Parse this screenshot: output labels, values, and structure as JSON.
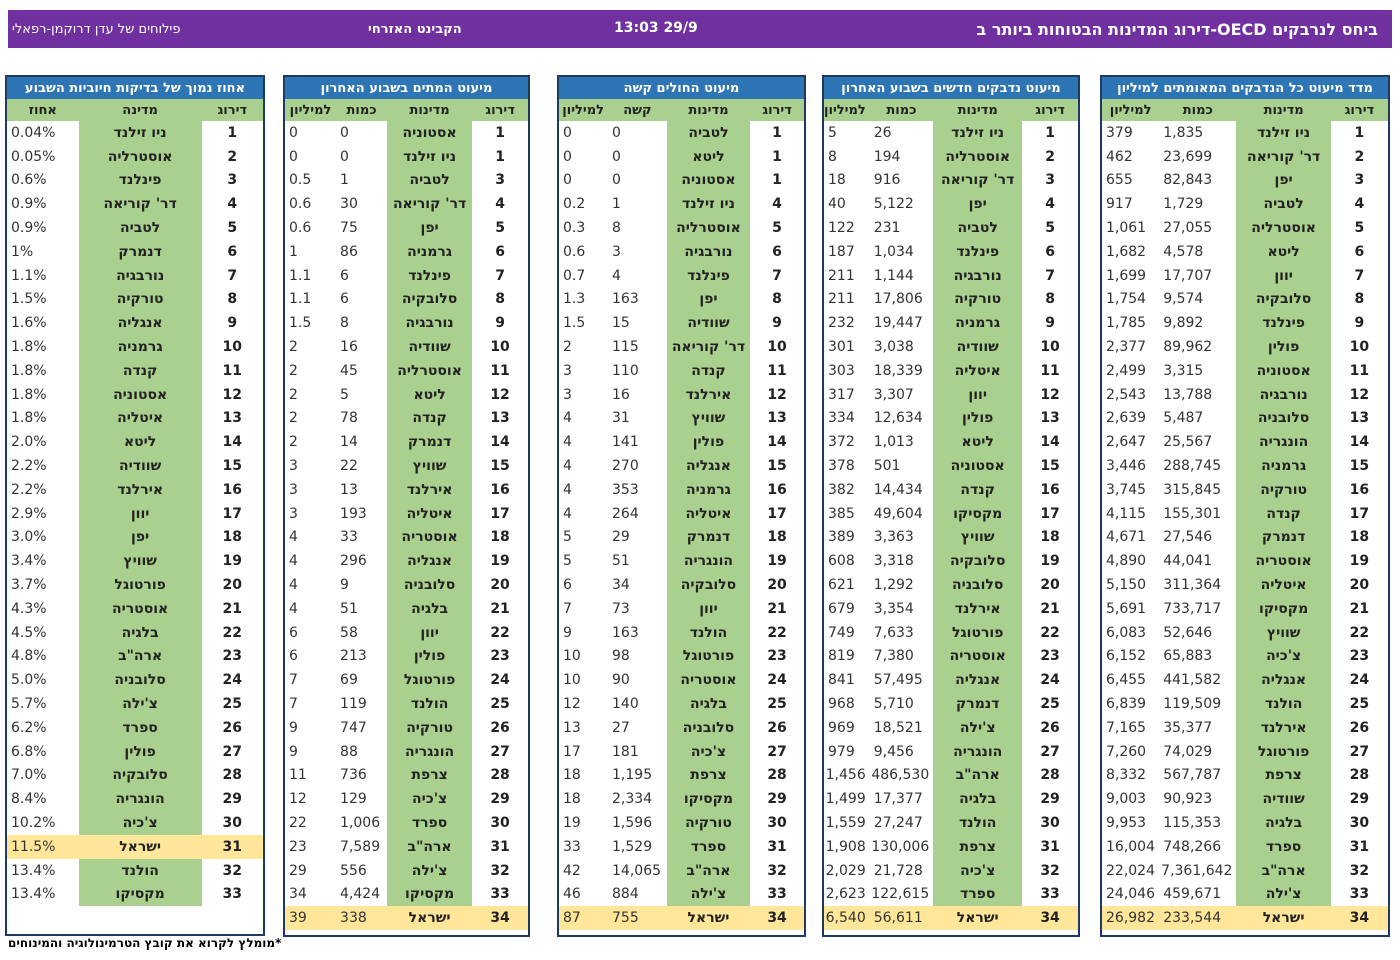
{
  "header": {
    "title": "דירוג המדינות הבטוחות ביותר ב-OECD ביחס לנרבקים",
    "time": "13:03 29/9",
    "source": "הקבינט האזרחי",
    "author": "פילוחים של עדן דרוקמן-רפאלי"
  },
  "tables": [
    {
      "title": "מדד מיעוט כל הנדבקים המאומתים למיליון",
      "headers": [
        "דירוג",
        "מדינות",
        "כמות",
        "למיליון"
      ],
      "rows": [
        [
          "1",
          "ניו זילנד",
          "1,835",
          "379"
        ],
        [
          "2",
          "דר' קוריאה",
          "23,699",
          "462"
        ],
        [
          "3",
          "יפן",
          "82,843",
          "655"
        ],
        [
          "4",
          "לטביה",
          "1,729",
          "917"
        ],
        [
          "5",
          "אוסטרליה",
          "27,055",
          "1,061"
        ],
        [
          "6",
          "ליטא",
          "4,578",
          "1,682"
        ],
        [
          "7",
          "יוון",
          "17,707",
          "1,699"
        ],
        [
          "8",
          "סלובקיה",
          "9,574",
          "1,754"
        ],
        [
          "9",
          "פינלנד",
          "9,892",
          "1,785"
        ],
        [
          "10",
          "פולין",
          "89,962",
          "2,377"
        ],
        [
          "11",
          "אסטוניה",
          "3,315",
          "2,499"
        ],
        [
          "12",
          "נורבגיה",
          "13,788",
          "2,543"
        ],
        [
          "13",
          "סלובניה",
          "5,487",
          "2,639"
        ],
        [
          "14",
          "הונגריה",
          "25,567",
          "2,647"
        ],
        [
          "15",
          "גרמניה",
          "288,745",
          "3,446"
        ],
        [
          "16",
          "טורקיה",
          "315,845",
          "3,745"
        ],
        [
          "17",
          "קנדה",
          "155,301",
          "4,115"
        ],
        [
          "18",
          "דנמרק",
          "27,546",
          "4,671"
        ],
        [
          "19",
          "אוסטריה",
          "44,041",
          "4,890"
        ],
        [
          "20",
          "איטליה",
          "311,364",
          "5,150"
        ],
        [
          "21",
          "מקסיקו",
          "733,717",
          "5,691"
        ],
        [
          "22",
          "שוויץ",
          "52,646",
          "6,083"
        ],
        [
          "23",
          "צ'כיה",
          "65,883",
          "6,152"
        ],
        [
          "24",
          "אנגליה",
          "441,582",
          "6,455"
        ],
        [
          "25",
          "הולנד",
          "119,509",
          "6,839"
        ],
        [
          "26",
          "אירלנד",
          "35,377",
          "7,165"
        ],
        [
          "27",
          "פורטוגל",
          "74,029",
          "7,260"
        ],
        [
          "28",
          "צרפת",
          "567,787",
          "8,332"
        ],
        [
          "29",
          "שוודיה",
          "90,923",
          "9,003"
        ],
        [
          "30",
          "בלגיה",
          "115,353",
          "9,953"
        ],
        [
          "31",
          "ספרד",
          "748,266",
          "16,004"
        ],
        [
          "32",
          "ארה\"ב",
          "7,361,642",
          "22,024"
        ],
        [
          "33",
          "צ'ילה",
          "459,671",
          "24,046"
        ],
        [
          "34",
          "ישראל",
          "233,544",
          "26,982"
        ]
      ]
    },
    {
      "title": "מיעוט נדבקים חדשים בשבוע האחרון",
      "headers": [
        "דירוג",
        "מדינות",
        "כמות",
        "למיליון"
      ],
      "rows": [
        [
          "1",
          "ניו זילנד",
          "26",
          "5"
        ],
        [
          "2",
          "אוסטרליה",
          "194",
          "8"
        ],
        [
          "3",
          "דר' קוריאה",
          "916",
          "18"
        ],
        [
          "4",
          "יפן",
          "5,122",
          "40"
        ],
        [
          "5",
          "לטביה",
          "231",
          "122"
        ],
        [
          "6",
          "פינלנד",
          "1,034",
          "187"
        ],
        [
          "7",
          "נורבגיה",
          "1,144",
          "211"
        ],
        [
          "8",
          "טורקיה",
          "17,806",
          "211"
        ],
        [
          "9",
          "גרמניה",
          "19,447",
          "232"
        ],
        [
          "10",
          "שוודיה",
          "3,038",
          "301"
        ],
        [
          "11",
          "איטליה",
          "18,339",
          "303"
        ],
        [
          "12",
          "יוון",
          "3,307",
          "317"
        ],
        [
          "13",
          "פולין",
          "12,634",
          "334"
        ],
        [
          "14",
          "ליטא",
          "1,013",
          "372"
        ],
        [
          "15",
          "אסטוניה",
          "501",
          "378"
        ],
        [
          "16",
          "קנדה",
          "14,434",
          "382"
        ],
        [
          "17",
          "מקסיקו",
          "49,604",
          "385"
        ],
        [
          "18",
          "שוויץ",
          "3,363",
          "389"
        ],
        [
          "19",
          "סלובקיה",
          "3,318",
          "608"
        ],
        [
          "20",
          "סלובניה",
          "1,292",
          "621"
        ],
        [
          "21",
          "אירלנד",
          "3,354",
          "679"
        ],
        [
          "22",
          "פורטוגל",
          "7,633",
          "749"
        ],
        [
          "23",
          "אוסטריה",
          "7,380",
          "819"
        ],
        [
          "24",
          "אנגליה",
          "57,495",
          "841"
        ],
        [
          "25",
          "דנמרק",
          "5,710",
          "968"
        ],
        [
          "26",
          "צ'ילה",
          "18,521",
          "969"
        ],
        [
          "27",
          "הונגריה",
          "9,456",
          "979"
        ],
        [
          "28",
          "ארה\"ב",
          "486,530",
          "1,456"
        ],
        [
          "29",
          "בלגיה",
          "17,377",
          "1,499"
        ],
        [
          "30",
          "הולנד",
          "27,247",
          "1,559"
        ],
        [
          "31",
          "צרפת",
          "130,006",
          "1,908"
        ],
        [
          "32",
          "צ'כיה",
          "21,728",
          "2,029"
        ],
        [
          "33",
          "ספרד",
          "122,615",
          "2,623"
        ],
        [
          "34",
          "ישראל",
          "56,611",
          "6,540"
        ]
      ]
    },
    {
      "title": "מיעוט החולים קשה",
      "headers": [
        "דירוג",
        "מדינות",
        "קשה",
        "למיליון"
      ],
      "rows": [
        [
          "1",
          "לטביה",
          "0",
          "0"
        ],
        [
          "1",
          "ליטא",
          "0",
          "0"
        ],
        [
          "1",
          "אסטוניה",
          "0",
          "0"
        ],
        [
          "4",
          "ניו זילנד",
          "1",
          "0.2"
        ],
        [
          "5",
          "אוסטרליה",
          "8",
          "0.3"
        ],
        [
          "6",
          "נורבגיה",
          "3",
          "0.6"
        ],
        [
          "7",
          "פינלנד",
          "4",
          "0.7"
        ],
        [
          "8",
          "יפן",
          "163",
          "1.3"
        ],
        [
          "9",
          "שוודיה",
          "15",
          "1.5"
        ],
        [
          "10",
          "דר' קוריאה",
          "115",
          "2"
        ],
        [
          "11",
          "קנדה",
          "110",
          "3"
        ],
        [
          "12",
          "אירלנד",
          "16",
          "3"
        ],
        [
          "13",
          "שוויץ",
          "31",
          "4"
        ],
        [
          "14",
          "פולין",
          "141",
          "4"
        ],
        [
          "15",
          "אנגליה",
          "270",
          "4"
        ],
        [
          "16",
          "גרמניה",
          "353",
          "4"
        ],
        [
          "17",
          "איטליה",
          "264",
          "4"
        ],
        [
          "18",
          "דנמרק",
          "29",
          "5"
        ],
        [
          "19",
          "הונגריה",
          "51",
          "5"
        ],
        [
          "20",
          "סלובקיה",
          "34",
          "6"
        ],
        [
          "21",
          "יוון",
          "73",
          "7"
        ],
        [
          "22",
          "הולנד",
          "163",
          "9"
        ],
        [
          "23",
          "פורטוגל",
          "98",
          "10"
        ],
        [
          "24",
          "אוסטריה",
          "90",
          "10"
        ],
        [
          "25",
          "בלגיה",
          "140",
          "12"
        ],
        [
          "26",
          "סלובניה",
          "27",
          "13"
        ],
        [
          "27",
          "צ'כיה",
          "181",
          "17"
        ],
        [
          "28",
          "צרפת",
          "1,195",
          "18"
        ],
        [
          "29",
          "מקסיקו",
          "2,334",
          "18"
        ],
        [
          "30",
          "טורקיה",
          "1,596",
          "19"
        ],
        [
          "31",
          "ספרד",
          "1,529",
          "33"
        ],
        [
          "32",
          "ארה\"ב",
          "14,065",
          "42"
        ],
        [
          "33",
          "צ'ילה",
          "884",
          "46"
        ],
        [
          "34",
          "ישראל",
          "755",
          "87"
        ]
      ]
    },
    {
      "title": "מיעוט המתים בשבוע האחרון",
      "headers": [
        "דירוג",
        "מדינות",
        "כמות",
        "למיליון"
      ],
      "rows": [
        [
          "1",
          "אסטוניה",
          "0",
          "0"
        ],
        [
          "1",
          "ניו זילנד",
          "0",
          "0"
        ],
        [
          "3",
          "לטביה",
          "1",
          "0.5"
        ],
        [
          "4",
          "דר' קוריאה",
          "30",
          "0.6"
        ],
        [
          "5",
          "יפן",
          "75",
          "0.6"
        ],
        [
          "6",
          "גרמניה",
          "86",
          "1"
        ],
        [
          "7",
          "פינלנד",
          "6",
          "1.1"
        ],
        [
          "8",
          "סלובקיה",
          "6",
          "1.1"
        ],
        [
          "9",
          "נורבגיה",
          "8",
          "1.5"
        ],
        [
          "10",
          "שוודיה",
          "16",
          "2"
        ],
        [
          "11",
          "אוסטרליה",
          "45",
          "2"
        ],
        [
          "12",
          "ליטא",
          "5",
          "2"
        ],
        [
          "13",
          "קנדה",
          "78",
          "2"
        ],
        [
          "14",
          "דנמרק",
          "14",
          "2"
        ],
        [
          "15",
          "שוויץ",
          "22",
          "3"
        ],
        [
          "16",
          "אירלנד",
          "13",
          "3"
        ],
        [
          "17",
          "איטליה",
          "193",
          "3"
        ],
        [
          "18",
          "אוסטריה",
          "33",
          "4"
        ],
        [
          "19",
          "אנגליה",
          "296",
          "4"
        ],
        [
          "20",
          "סלובניה",
          "9",
          "4"
        ],
        [
          "21",
          "בלגיה",
          "51",
          "4"
        ],
        [
          "22",
          "יוון",
          "58",
          "6"
        ],
        [
          "23",
          "פולין",
          "213",
          "6"
        ],
        [
          "24",
          "פורטוגל",
          "69",
          "7"
        ],
        [
          "25",
          "הולנד",
          "119",
          "7"
        ],
        [
          "26",
          "טורקיה",
          "747",
          "9"
        ],
        [
          "27",
          "הונגריה",
          "88",
          "9"
        ],
        [
          "28",
          "צרפת",
          "736",
          "11"
        ],
        [
          "29",
          "צ'כיה",
          "129",
          "12"
        ],
        [
          "30",
          "ספרד",
          "1,006",
          "22"
        ],
        [
          "31",
          "ארה\"ב",
          "7,589",
          "23"
        ],
        [
          "32",
          "צ'ילה",
          "556",
          "29"
        ],
        [
          "33",
          "מקסיקו",
          "4,424",
          "34"
        ],
        [
          "34",
          "ישראל",
          "338",
          "39"
        ]
      ]
    },
    {
      "title": "אחוז נמוך של בדיקות חיוביות השבוע",
      "headers": [
        "דירוג",
        "מדינה",
        "אחוז"
      ],
      "rows": [
        [
          "1",
          "ניו זילנד",
          "0.04%"
        ],
        [
          "2",
          "אוסטרליה",
          "0.05%"
        ],
        [
          "3",
          "פינלנד",
          "0.6%"
        ],
        [
          "4",
          "דר' קוריאה",
          "0.9%"
        ],
        [
          "5",
          "לטביה",
          "0.9%"
        ],
        [
          "6",
          "דנמרק",
          "1%"
        ],
        [
          "7",
          "נורבגיה",
          "1.1%"
        ],
        [
          "8",
          "טורקיה",
          "1.5%"
        ],
        [
          "9",
          "אנגליה",
          "1.6%"
        ],
        [
          "10",
          "גרמניה",
          "1.8%"
        ],
        [
          "11",
          "קנדה",
          "1.8%"
        ],
        [
          "12",
          "אסטוניה",
          "1.8%"
        ],
        [
          "13",
          "איטליה",
          "1.8%"
        ],
        [
          "14",
          "ליטא",
          "2.0%"
        ],
        [
          "15",
          "שוודיה",
          "2.2%"
        ],
        [
          "16",
          "אירלנד",
          "2.2%"
        ],
        [
          "17",
          "יוון",
          "2.9%"
        ],
        [
          "18",
          "יפן",
          "3.0%"
        ],
        [
          "19",
          "שוויץ",
          "3.4%"
        ],
        [
          "20",
          "פורטוגל",
          "3.7%"
        ],
        [
          "21",
          "אוסטריה",
          "4.3%"
        ],
        [
          "22",
          "בלגיה",
          "4.5%"
        ],
        [
          "23",
          "ארה\"ב",
          "4.8%"
        ],
        [
          "24",
          "סלובניה",
          "5.0%"
        ],
        [
          "25",
          "צ'ילה",
          "5.7%"
        ],
        [
          "26",
          "ספרד",
          "6.2%"
        ],
        [
          "27",
          "פולין",
          "6.8%"
        ],
        [
          "28",
          "סלובקיה",
          "7.0%"
        ],
        [
          "29",
          "הונגריה",
          "8.4%"
        ],
        [
          "30",
          "צ'כיה",
          "10.2%"
        ],
        [
          "31",
          "ישראל",
          "11.5%"
        ],
        [
          "32",
          "הולנד",
          "13.4%"
        ],
        [
          "33",
          "מקסיקו",
          "13.4%"
        ]
      ]
    }
  ],
  "footnote": "*מומלץ לקרוא את קובץ הטרמינולוגיה והמינוחים"
}
